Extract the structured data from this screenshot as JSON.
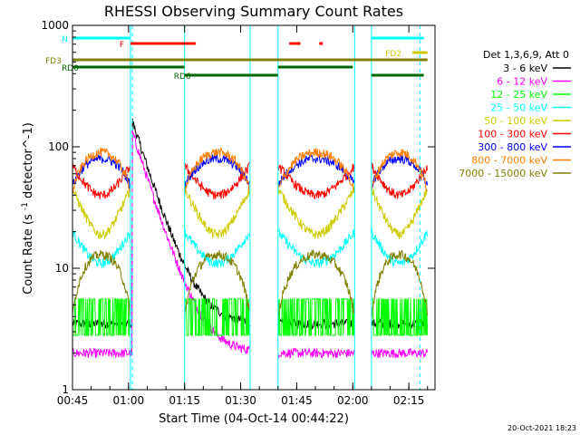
{
  "chart_data": {
    "type": "line",
    "title": "RHESSI Observing Summary Count Rates",
    "xlabel": "Start Time (04-Oct-14 00:44:22)",
    "ylabel": "Count Rate (s^-1 detector^-1)",
    "yscale": "log",
    "ylim": [
      1,
      1000
    ],
    "xlim_minutes": [
      45,
      142
    ],
    "x_ticks": [
      {
        "label": "00:45",
        "min": 45
      },
      {
        "label": "01:00",
        "min": 60
      },
      {
        "label": "01:15",
        "min": 75
      },
      {
        "label": "01:30",
        "min": 90
      },
      {
        "label": "01:45",
        "min": 105
      },
      {
        "label": "02:00",
        "min": 120
      },
      {
        "label": "02:15",
        "min": 135
      }
    ],
    "y_ticks": [
      {
        "label": "1",
        "value": 1
      },
      {
        "label": "10",
        "value": 10
      },
      {
        "label": "100",
        "value": 100
      },
      {
        "label": "1000",
        "value": 1000
      }
    ],
    "legend_title": "Det 1,3,6,9, Att 0",
    "legend_position": "right",
    "series": [
      {
        "name": "3 - 6 keV",
        "color": "#000000",
        "kind": "flare",
        "base": 3.5,
        "peak": 160
      },
      {
        "name": "6 - 12 keV",
        "color": "#ff00ff",
        "kind": "flare",
        "base": 2.0,
        "peak": 130
      },
      {
        "name": "12 - 25 keV",
        "color": "#00ff00",
        "kind": "noise",
        "base": 4.0,
        "peak": 4.0
      },
      {
        "name": "25 - 50 keV",
        "color": "#00ffff",
        "kind": "orbit",
        "base": 20,
        "peak": 11
      },
      {
        "name": "50 - 100 keV",
        "color": "#cccc00",
        "kind": "orbit",
        "base": 45,
        "peak": 19
      },
      {
        "name": "100 - 300 keV",
        "color": "#ff0000",
        "kind": "orbit",
        "base": 70,
        "peak": 40
      },
      {
        "name": "300 - 800 keV",
        "color": "#0000ff",
        "kind": "orbit",
        "base": 48,
        "peak": 80
      },
      {
        "name": "800 - 7000 keV",
        "color": "#ff8000",
        "kind": "orbit",
        "base": 43,
        "peak": 90
      },
      {
        "name": "7000 - 15000 keV",
        "color": "#808000",
        "kind": "orbit",
        "base": 4.0,
        "peak": 13
      }
    ],
    "data_gaps_minutes": [
      [
        60.5,
        75
      ],
      [
        92.5,
        100
      ],
      [
        120.5,
        125
      ]
    ],
    "dashed_markers_minutes": [
      61,
      138
    ],
    "flags": [
      {
        "label": "N",
        "color": "#00ffff",
        "segments": [
          [
            45,
            60.5
          ],
          [
            125,
            139
          ]
        ]
      },
      {
        "label": "F",
        "color": "#ff0000",
        "segments": [
          [
            60.5,
            78
          ],
          [
            103,
            106
          ],
          [
            111,
            112
          ]
        ]
      },
      {
        "label": "FD2",
        "color": "#cccc00",
        "segments": [
          [
            136,
            140
          ]
        ]
      },
      {
        "label": "FD3",
        "color": "#808000",
        "segments": [
          [
            45,
            140
          ]
        ]
      },
      {
        "label": "RD0",
        "color": "#006600",
        "segments": [
          [
            45,
            75
          ],
          [
            100,
            120
          ]
        ]
      },
      {
        "label": "RD6",
        "color": "#006600",
        "segments": [
          [
            75,
            100
          ],
          [
            125,
            139
          ]
        ]
      }
    ]
  },
  "footer": {
    "timestamp": "20-Oct-2021 18:23"
  }
}
